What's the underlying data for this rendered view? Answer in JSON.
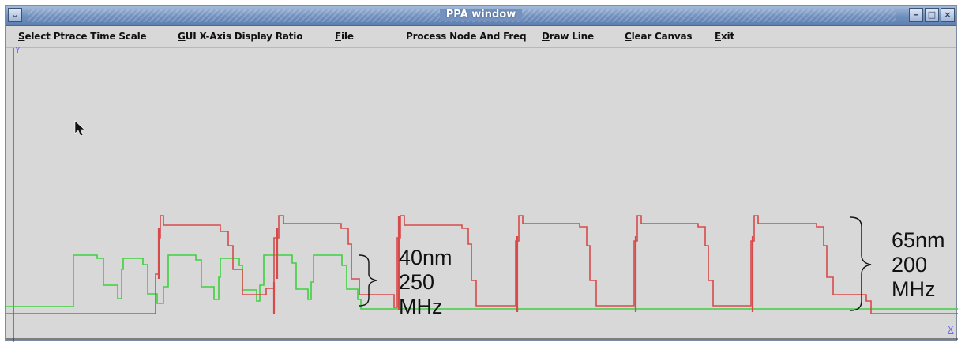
{
  "window": {
    "title": "PPA window"
  },
  "menu": {
    "items": [
      {
        "key": "select-ptrace",
        "mnemonic": "S",
        "rest": "elect Ptrace Time Scale"
      },
      {
        "key": "gui-x-axis",
        "mnemonic": "G",
        "rest": "UI X-Axis Display Ratio"
      },
      {
        "key": "file",
        "mnemonic": "F",
        "rest": "ile"
      },
      {
        "key": "process-node",
        "mnemonic": "",
        "rest": "Process Node And Freq"
      },
      {
        "key": "draw-line",
        "mnemonic": "D",
        "rest": "raw Line"
      },
      {
        "key": "clear-canvas",
        "mnemonic": "C",
        "rest": "lear Canvas"
      },
      {
        "key": "exit",
        "mnemonic": "E",
        "rest": "xit"
      }
    ]
  },
  "canvas": {
    "y_axis_label": "Y",
    "x_axis_label": "X",
    "annotation_40nm": {
      "line1": "40nm",
      "line2": "250",
      "line3": "MHz"
    },
    "annotation_65nm": {
      "line1": "65nm",
      "line2": "200",
      "line3": "MHz"
    }
  },
  "colors": {
    "trace_65nm": "#d84a4a",
    "trace_40nm": "#3ed03e",
    "canvas_bg": "#d8d8d8",
    "titlebar": "#6f8fbd"
  },
  "icons": {
    "system_menu": "chevron-down-icon",
    "minimize": "minimize-icon",
    "maximize": "maximize-icon",
    "close": "close-icon",
    "cursor": "mouse-pointer-icon"
  }
}
